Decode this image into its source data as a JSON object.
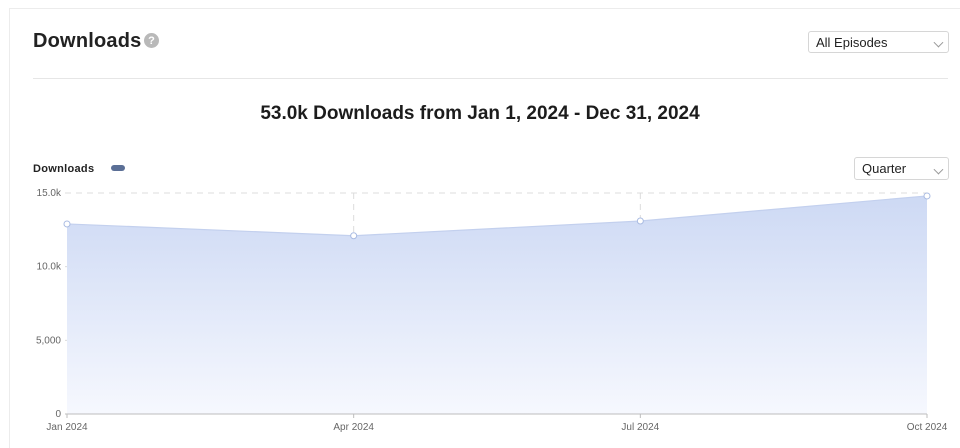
{
  "header": {
    "title": "Downloads",
    "help_glyph": "?",
    "help_icon": "question-circle-icon",
    "episode_select": {
      "value": "All Episodes",
      "icon": "chevron-down-icon"
    }
  },
  "summary": {
    "headline": "53.0k Downloads from Jan 1, 2024 - Dec 31, 2024"
  },
  "legend": {
    "label": "Downloads",
    "color": "#5b6f96"
  },
  "interval_select": {
    "value": "Quarter",
    "icon": "chevron-down-icon"
  },
  "colors": {
    "area_top": "#cdd9f4",
    "area_bottom": "#f6f8fe",
    "line": "#c3d0ee",
    "grid": "#dcdcdc"
  },
  "chart_data": {
    "type": "area",
    "categories": [
      "Jan 2024",
      "Apr 2024",
      "Jul 2024",
      "Oct 2024"
    ],
    "series": [
      {
        "values": [
          12900,
          12100,
          13100,
          14800
        ]
      }
    ],
    "y_ticks": [
      "0",
      "5,000",
      "10.0k",
      "15.0k"
    ],
    "y_tick_values": [
      0,
      5000,
      10000,
      15000
    ],
    "ylim": [
      0,
      15000
    ],
    "grid": true,
    "grid_style": "dashed"
  }
}
